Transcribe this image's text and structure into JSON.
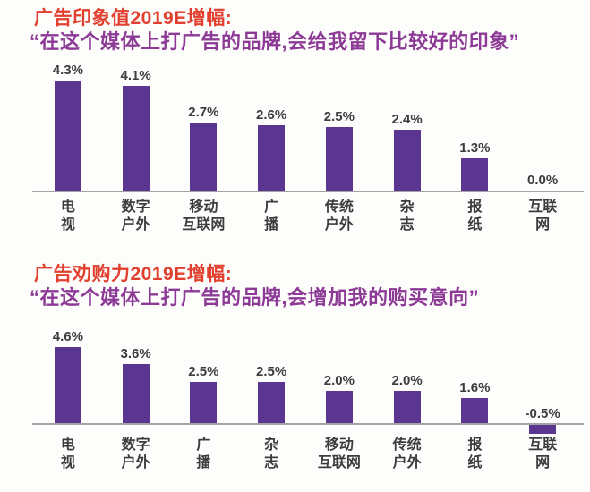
{
  "colors": {
    "bar": "#5b3690",
    "title_red": "#e2402f",
    "subtitle_purple": "#8c3a96",
    "axis_line": "#a3a3a3",
    "value_text": "#3d3d3d"
  },
  "chart_data": [
    {
      "type": "bar",
      "title": "广告印象值2019E增幅:",
      "subtitle": "“在这个媒体上打广告的品牌,会给我留下比较好的印象”",
      "categories": [
        "电视",
        "数字户外",
        "移动互联网",
        "广播",
        "传统户外",
        "杂志",
        "报纸",
        "互联网"
      ],
      "category_labels": [
        "电\n视",
        "数字\n户外",
        "移动\n互联网",
        "广\n播",
        "传统\n户外",
        "杂\n志",
        "报\n纸",
        "互联\n网"
      ],
      "values": [
        4.3,
        4.1,
        2.7,
        2.6,
        2.5,
        2.4,
        1.3,
        0.0
      ],
      "value_labels": [
        "4.3%",
        "4.1%",
        "2.7%",
        "2.6%",
        "2.5%",
        "2.4%",
        "1.3%",
        "0.0%"
      ],
      "unit": "%",
      "ylim": [
        0,
        4.6
      ],
      "grid": false,
      "legend": "none"
    },
    {
      "type": "bar",
      "title": "广告劝购力2019E增幅:",
      "subtitle": "“在这个媒体上打广告的品牌,会增加我的购买意向”",
      "categories": [
        "电视",
        "数字户外",
        "广播",
        "杂志",
        "移动互联网",
        "传统户外",
        "报纸",
        "互联网"
      ],
      "category_labels": [
        "电\n视",
        "数字\n户外",
        "广\n播",
        "杂\n志",
        "移动\n互联网",
        "传统\n户外",
        "报\n纸",
        "互联\n网"
      ],
      "values": [
        4.6,
        3.6,
        2.5,
        2.5,
        2.0,
        2.0,
        1.6,
        -0.5
      ],
      "value_labels": [
        "4.6%",
        "3.6%",
        "2.5%",
        "2.5%",
        "2.0%",
        "2.0%",
        "1.6%",
        "-0.5%"
      ],
      "unit": "%",
      "ylim": [
        -0.6,
        4.8
      ],
      "grid": false,
      "legend": "none"
    }
  ]
}
